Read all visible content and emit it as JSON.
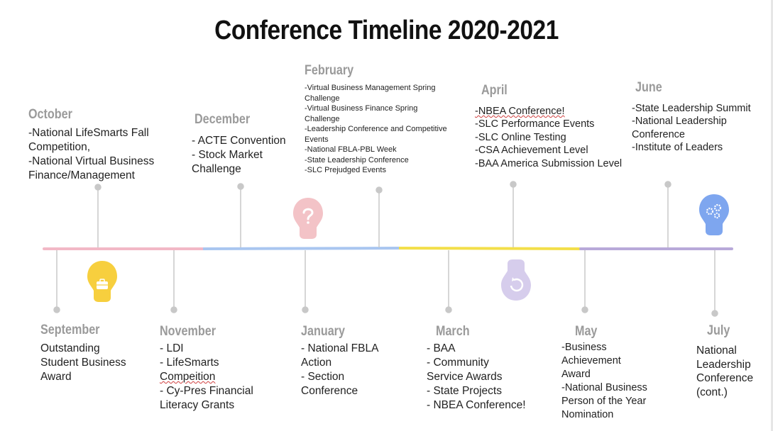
{
  "title": "Conference Timeline 2020-2021",
  "colors": {
    "pink": "#f2b8c6",
    "blue": "#a9c6f0",
    "yellow": "#f3df4a",
    "purple": "#b8a9d9",
    "connector": "#c8c8c8",
    "month_label": "#9a9a9a"
  },
  "top": {
    "october": {
      "month": "October",
      "lines": [
        "-National LifeSmarts Fall",
        "Competition,",
        "-National Virtual Business",
        "Finance/Management"
      ]
    },
    "december": {
      "month": "December",
      "lines": [
        "- ACTE Convention",
        "- Stock Market",
        "Challenge"
      ]
    },
    "february": {
      "month": "February",
      "lines": [
        "-Virtual Business Management Spring",
        "Challenge",
        "-Virtual Business Finance Spring",
        "Challenge",
        "-Leadership Conference and Competitive",
        "Events",
        "-National FBLA-PBL Week",
        "-State Leadership Conference",
        "-SLC Prejudged Events"
      ]
    },
    "april": {
      "month": "April",
      "lines": [
        "-NBEA Conference!",
        "-SLC Performance Events",
        "-SLC Online Testing",
        "-CSA Achievement Level",
        "-BAA America Submission Level"
      ]
    },
    "june": {
      "month": "June",
      "lines": [
        "-State Leadership Summit",
        "-National Leadership",
        "Conference",
        "-Institute of Leaders"
      ]
    }
  },
  "bottom": {
    "september": {
      "month": "September",
      "lines": [
        "Outstanding",
        "Student Business",
        "Award"
      ]
    },
    "november": {
      "month": "November",
      "lines": [
        "- LDI",
        "- LifeSmarts",
        "Compeition",
        "- Cy-Pres Financial",
        "Literacy Grants"
      ]
    },
    "january": {
      "month": "January",
      "lines": [
        "- National FBLA",
        "Action",
        "- Section",
        "Conference"
      ]
    },
    "march": {
      "month": "March",
      "lines": [
        "- BAA",
        "- Community",
        "Service Awards",
        "- State Projects",
        "- NBEA Conference!"
      ]
    },
    "may": {
      "month": "May",
      "lines": [
        "-Business",
        "Achievement",
        "Award",
        "-National Business",
        "Person of the Year",
        "Nomination"
      ]
    },
    "july": {
      "month": "July",
      "lines": [
        "National",
        "Leadership",
        "Conference",
        "(cont.)"
      ]
    }
  },
  "icons": [
    "briefcase-icon",
    "question-icon",
    "refresh-icon",
    "gears-icon"
  ]
}
